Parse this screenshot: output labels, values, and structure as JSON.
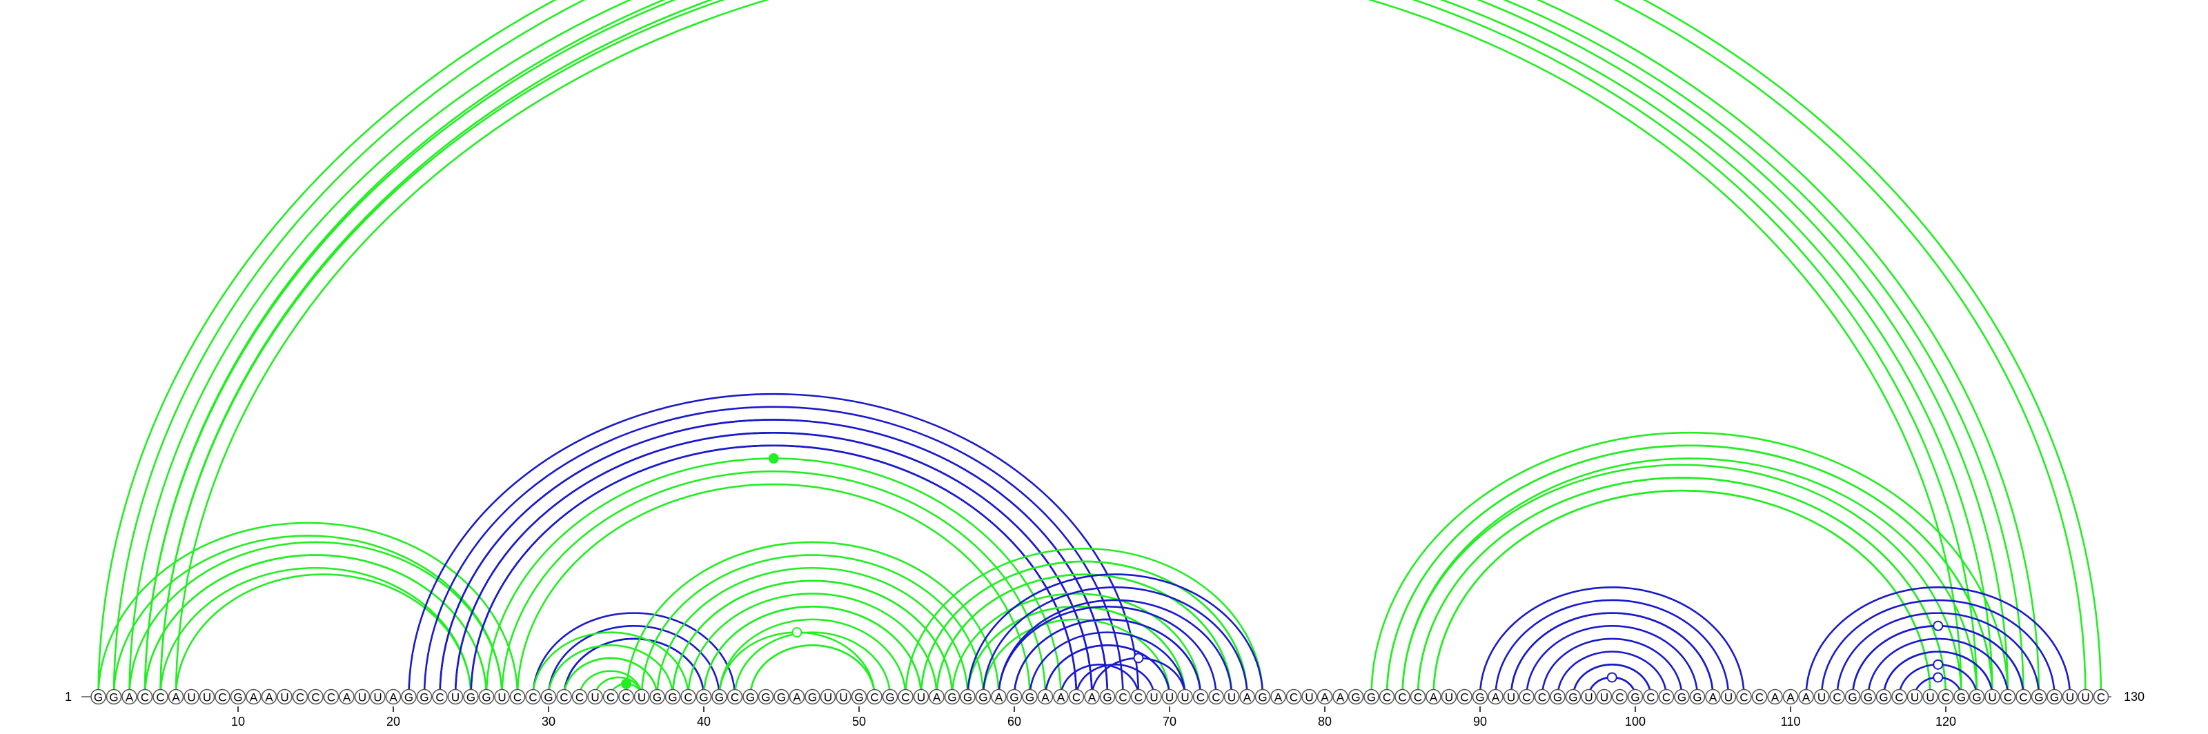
{
  "sequence": "GGACCAUUCGAAUCCCAUUAGGCUGGUCCGCCUCCUGGCGGCGGGAGUUGCGCUAGGGAGGAACAGCCUUUCCUAGACUAAGGCCCAUCGAUCCGGUUCGCCGGAUCCAAAUCGGGCUUCGGUCCGGUUC",
  "start_label": "1",
  "end_label": "130",
  "ticks": [
    "10",
    "20",
    "30",
    "40",
    "50",
    "60",
    "70",
    "80",
    "90",
    "100",
    "110",
    "120"
  ],
  "colors": {
    "green": "#22ee22",
    "blue": "#1a1acc"
  },
  "helices": [
    {
      "i": 1,
      "j": 130,
      "n": 1,
      "color": "green",
      "marker": "open"
    },
    {
      "i": 2,
      "j": 129,
      "n": 1,
      "color": "green"
    },
    {
      "i": 3,
      "j": 126,
      "n": 2,
      "color": "green"
    },
    {
      "i": 4,
      "j": 124,
      "n": 2,
      "color": "green"
    },
    {
      "i": 5,
      "j": 122,
      "n": 2,
      "color": "green"
    },
    {
      "i": 1,
      "j": 28,
      "n": 2,
      "color": "green"
    },
    {
      "i": 3,
      "j": 27,
      "n": 2,
      "color": "green"
    },
    {
      "i": 4,
      "j": 26,
      "n": 2,
      "color": "green"
    },
    {
      "i": 6,
      "j": 25,
      "n": 1,
      "color": "green"
    },
    {
      "i": 21,
      "j": 68,
      "n": 1,
      "color": "blue"
    },
    {
      "i": 22,
      "j": 67,
      "n": 2,
      "color": "blue"
    },
    {
      "i": 23,
      "j": 66,
      "n": 2,
      "color": "blue"
    },
    {
      "i": 24,
      "j": 65,
      "n": 2,
      "color": "blue"
    },
    {
      "i": 25,
      "j": 64,
      "n": 1,
      "color": "blue"
    },
    {
      "i": 26,
      "j": 63,
      "n": 1,
      "color": "green",
      "marker": "filled"
    },
    {
      "i": 27,
      "j": 62,
      "n": 1,
      "color": "green"
    },
    {
      "i": 28,
      "j": 61,
      "n": 1,
      "color": "green"
    },
    {
      "i": 29,
      "j": 42,
      "n": 1,
      "color": "blue"
    },
    {
      "i": 30,
      "j": 41,
      "n": 2,
      "color": "blue"
    },
    {
      "i": 31,
      "j": 40,
      "n": 1,
      "color": "blue"
    },
    {
      "i": 29,
      "j": 39,
      "n": 1,
      "color": "green"
    },
    {
      "i": 30,
      "j": 38,
      "n": 2,
      "color": "green"
    },
    {
      "i": 31,
      "j": 37,
      "n": 1,
      "color": "green"
    },
    {
      "i": 32,
      "j": 36,
      "n": 1,
      "color": "green"
    },
    {
      "i": 33,
      "j": 36,
      "n": 1,
      "color": "green"
    },
    {
      "i": 34,
      "j": 36,
      "n": 1,
      "color": "green",
      "marker": "filled"
    },
    {
      "i": 35,
      "j": 59,
      "n": 1,
      "color": "green"
    },
    {
      "i": 36,
      "j": 58,
      "n": 1,
      "color": "green"
    },
    {
      "i": 37,
      "j": 57,
      "n": 2,
      "color": "green"
    },
    {
      "i": 38,
      "j": 56,
      "n": 1,
      "color": "green"
    },
    {
      "i": 39,
      "j": 55,
      "n": 2,
      "color": "green"
    },
    {
      "i": 40,
      "j": 54,
      "n": 1,
      "color": "green"
    },
    {
      "i": 41,
      "j": 53,
      "n": 1,
      "color": "green"
    },
    {
      "i": 42,
      "j": 52,
      "n": 2,
      "color": "green"
    },
    {
      "i": 43,
      "j": 51,
      "n": 1,
      "color": "green"
    },
    {
      "i": 41,
      "j": 51,
      "n": 1,
      "color": "green",
      "marker": "open"
    },
    {
      "i": 53,
      "j": 76,
      "n": 2,
      "color": "green"
    },
    {
      "i": 54,
      "j": 75,
      "n": 2,
      "color": "green"
    },
    {
      "i": 55,
      "j": 74,
      "n": 1,
      "color": "green"
    },
    {
      "i": 56,
      "j": 72,
      "n": 2,
      "color": "green"
    },
    {
      "i": 57,
      "j": 71,
      "n": 1,
      "color": "green"
    },
    {
      "i": 58,
      "j": 70,
      "n": 1,
      "color": "green"
    },
    {
      "i": 57,
      "j": 76,
      "n": 1,
      "color": "blue"
    },
    {
      "i": 58,
      "j": 75,
      "n": 2,
      "color": "blue"
    },
    {
      "i": 59,
      "j": 73,
      "n": 2,
      "color": "blue"
    },
    {
      "i": 60,
      "j": 72,
      "n": 1,
      "color": "blue"
    },
    {
      "i": 61,
      "j": 71,
      "n": 2,
      "color": "blue"
    },
    {
      "i": 62,
      "j": 70,
      "n": 1,
      "color": "blue"
    },
    {
      "i": 63,
      "j": 68,
      "n": 1,
      "color": "blue"
    },
    {
      "i": 64,
      "j": 69,
      "n": 1,
      "color": "blue"
    },
    {
      "i": 65,
      "j": 71,
      "n": 1,
      "color": "blue",
      "marker": "open"
    },
    {
      "i": 83,
      "j": 124,
      "n": 2,
      "color": "green"
    },
    {
      "i": 84,
      "j": 123,
      "n": 2,
      "color": "green"
    },
    {
      "i": 85,
      "j": 121,
      "n": 2,
      "color": "green"
    },
    {
      "i": 86,
      "j": 120,
      "n": 2,
      "color": "green"
    },
    {
      "i": 87,
      "j": 119,
      "n": 1,
      "color": "green"
    },
    {
      "i": 90,
      "j": 107,
      "n": 1,
      "color": "blue"
    },
    {
      "i": 91,
      "j": 106,
      "n": 2,
      "color": "blue"
    },
    {
      "i": 92,
      "j": 105,
      "n": 1,
      "color": "blue"
    },
    {
      "i": 93,
      "j": 104,
      "n": 1,
      "color": "blue"
    },
    {
      "i": 94,
      "j": 103,
      "n": 1,
      "color": "blue"
    },
    {
      "i": 95,
      "j": 102,
      "n": 2,
      "color": "blue"
    },
    {
      "i": 96,
      "j": 101,
      "n": 2,
      "color": "blue"
    },
    {
      "i": 97,
      "j": 100,
      "n": 1,
      "color": "blue",
      "marker": "open"
    },
    {
      "i": 111,
      "j": 128,
      "n": 1,
      "color": "blue"
    },
    {
      "i": 112,
      "j": 127,
      "n": 1,
      "color": "blue"
    },
    {
      "i": 113,
      "j": 126,
      "n": 2,
      "color": "blue"
    },
    {
      "i": 114,
      "j": 125,
      "n": 1,
      "color": "blue",
      "marker": "open"
    },
    {
      "i": 115,
      "j": 124,
      "n": 2,
      "color": "blue"
    },
    {
      "i": 116,
      "j": 123,
      "n": 1,
      "color": "blue"
    },
    {
      "i": 117,
      "j": 122,
      "n": 1,
      "color": "blue",
      "marker": "open"
    },
    {
      "i": 118,
      "j": 121,
      "n": 1,
      "color": "blue",
      "marker": "open"
    }
  ]
}
